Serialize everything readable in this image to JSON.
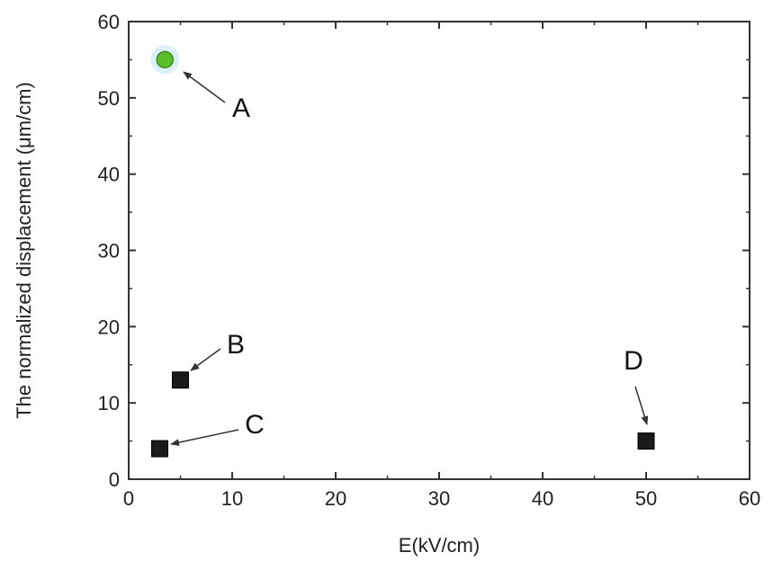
{
  "chart_data": {
    "type": "scatter",
    "xlabel": "E(kV/cm)",
    "ylabel": "The normalized displacement (μm/cm)",
    "xlim": [
      0,
      60
    ],
    "ylim": [
      0,
      60
    ],
    "x_ticks": [
      0,
      10,
      20,
      30,
      40,
      50,
      60
    ],
    "y_ticks": [
      0,
      10,
      20,
      30,
      40,
      50,
      60
    ],
    "grid": false,
    "points": [
      {
        "label": "A",
        "x": 3.5,
        "y": 55,
        "marker": "circle",
        "color": "#5bbf2a"
      },
      {
        "label": "B",
        "x": 5,
        "y": 13,
        "marker": "square",
        "color": "#1a1a1a"
      },
      {
        "label": "C",
        "x": 3,
        "y": 4,
        "marker": "square",
        "color": "#1a1a1a"
      },
      {
        "label": "D",
        "x": 50,
        "y": 5,
        "marker": "square",
        "color": "#1a1a1a"
      }
    ]
  }
}
